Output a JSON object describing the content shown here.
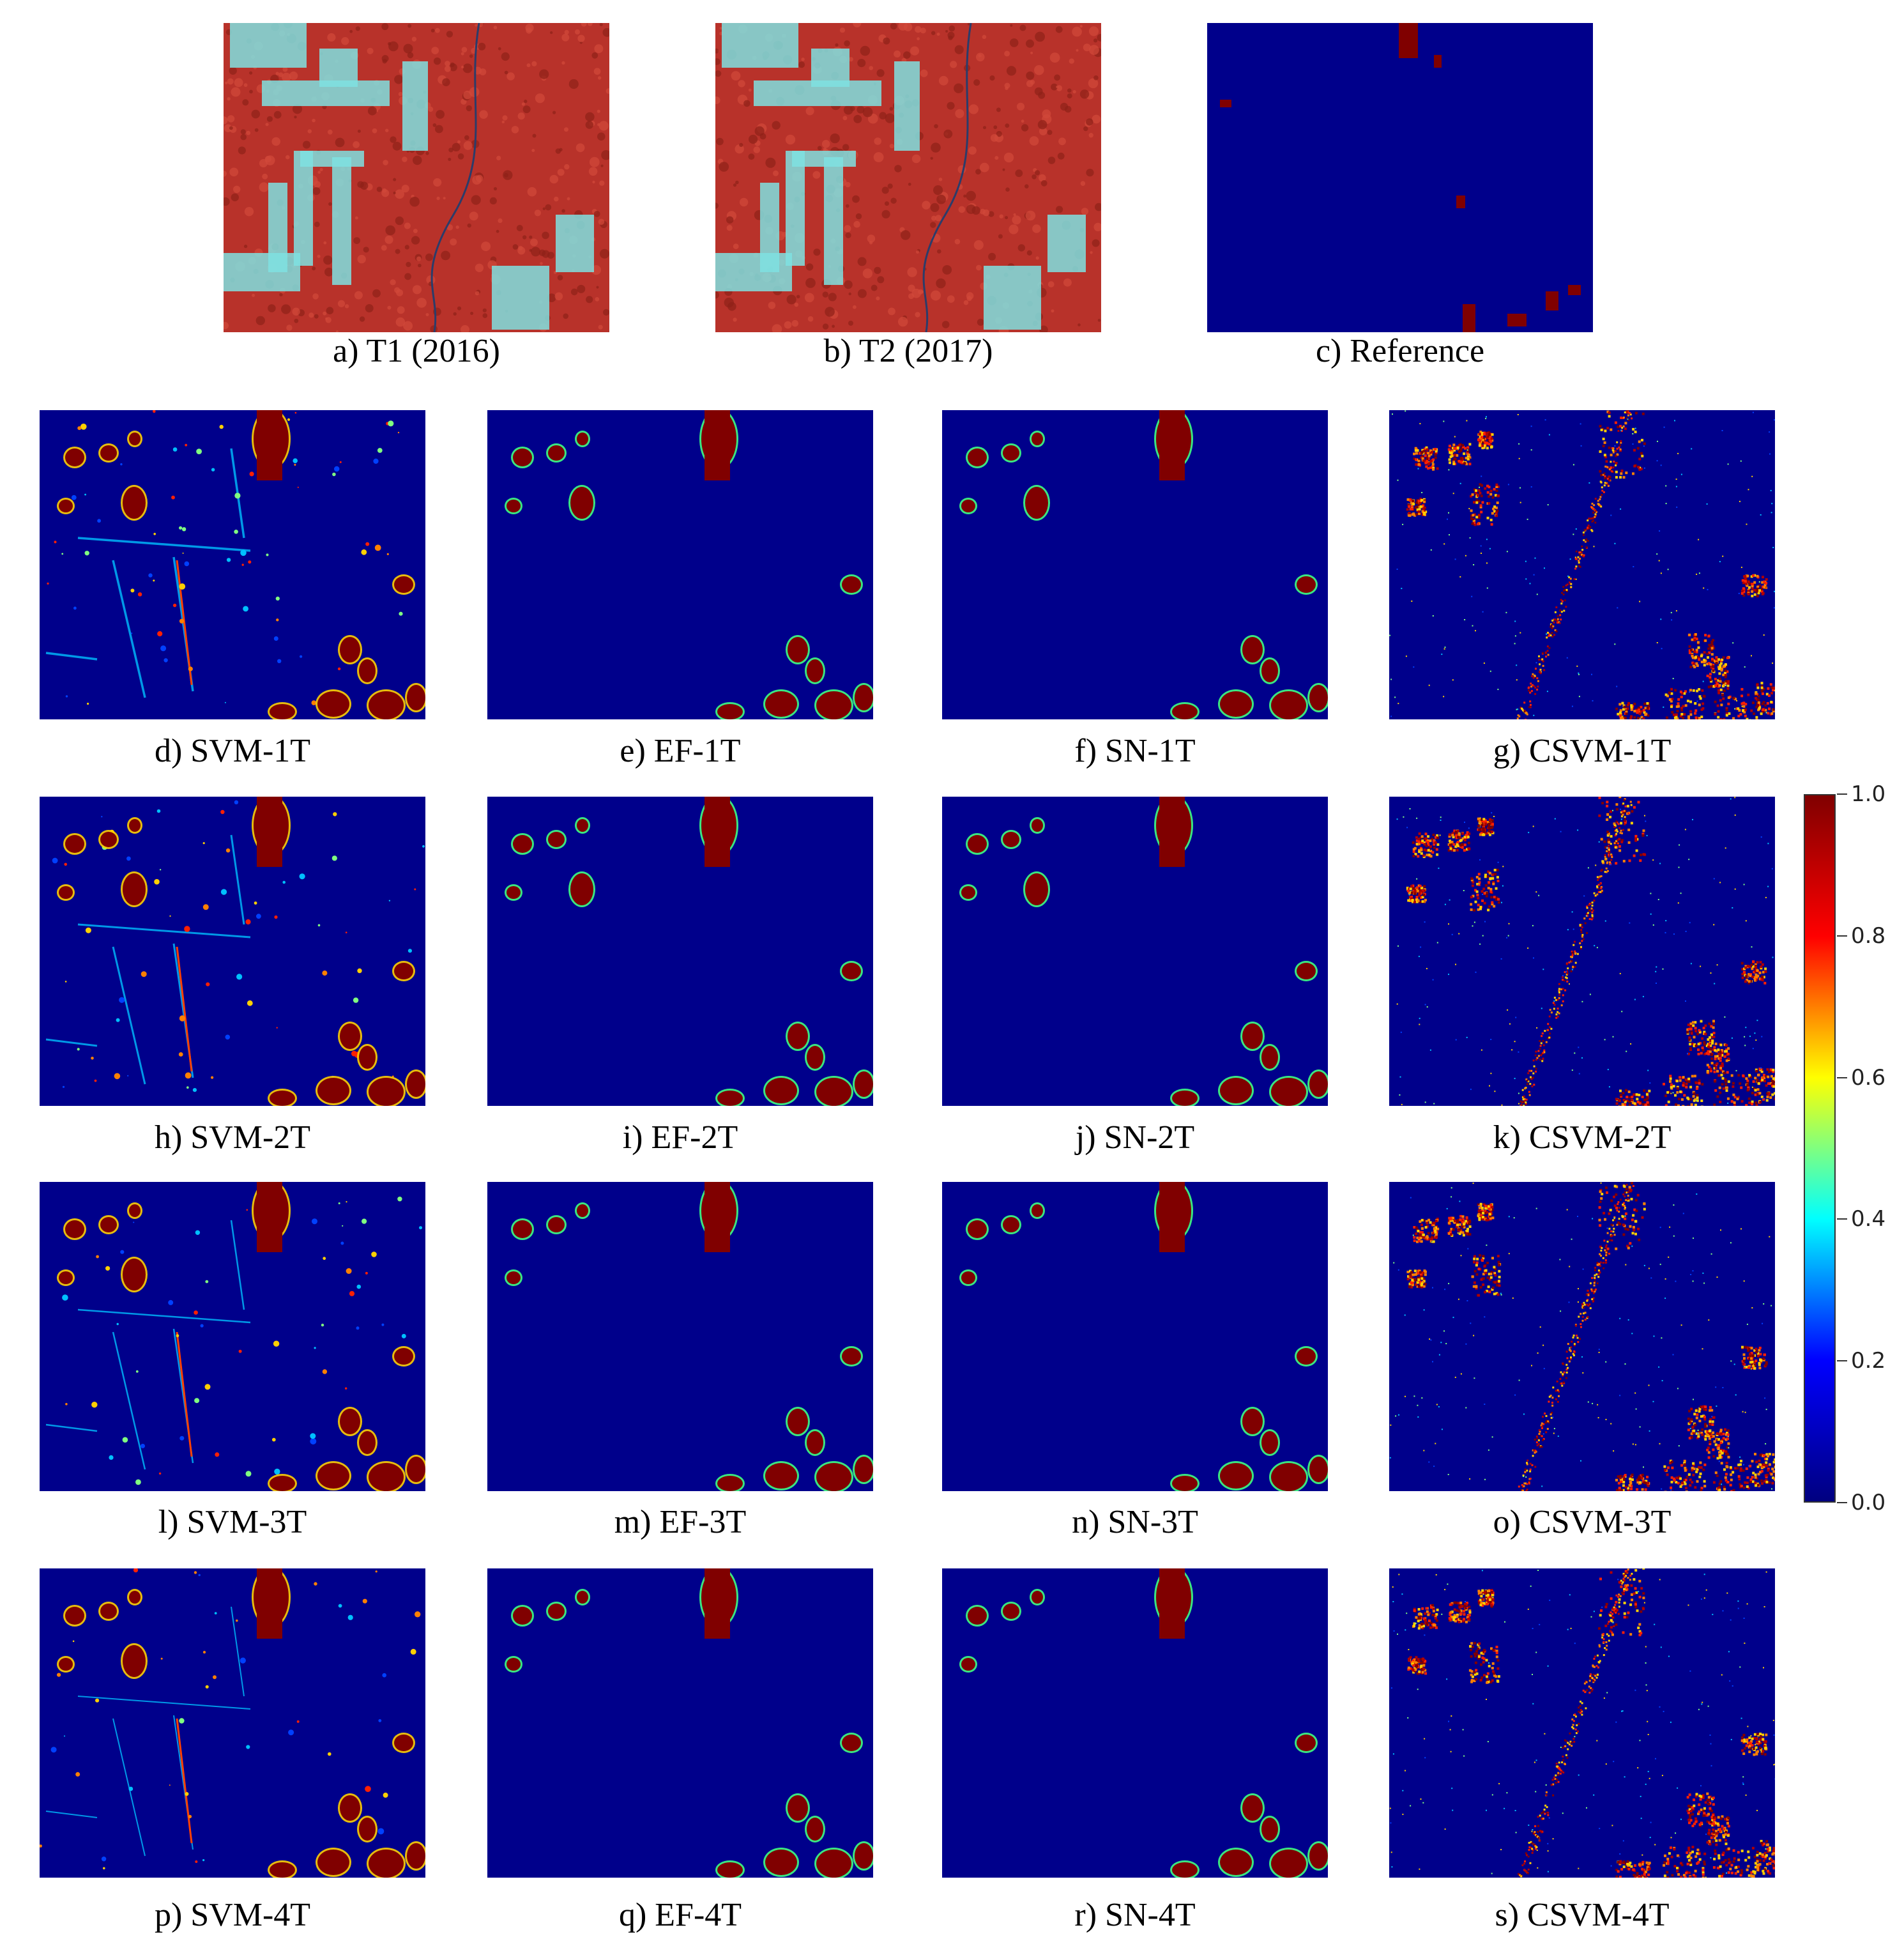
{
  "figure": {
    "panels": [
      {
        "id": "a",
        "caption": "a) T1 (2016)",
        "kind": "rgb",
        "time": "T1"
      },
      {
        "id": "b",
        "caption": "b) T2 (2017)",
        "kind": "rgb",
        "time": "T2"
      },
      {
        "id": "c",
        "caption": "c) Reference",
        "kind": "reference"
      },
      {
        "id": "d",
        "caption": "d) SVM-1T",
        "kind": "svm",
        "level": 1
      },
      {
        "id": "e",
        "caption": "e) EF-1T",
        "kind": "ef",
        "level": 1
      },
      {
        "id": "f",
        "caption": "f) SN-1T",
        "kind": "sn",
        "level": 1
      },
      {
        "id": "g",
        "caption": "g) CSVM-1T",
        "kind": "csvm",
        "level": 1
      },
      {
        "id": "h",
        "caption": "h) SVM-2T",
        "kind": "svm",
        "level": 2
      },
      {
        "id": "i",
        "caption": "i) EF-2T",
        "kind": "ef",
        "level": 2
      },
      {
        "id": "j",
        "caption": "j) SN-2T",
        "kind": "sn",
        "level": 2
      },
      {
        "id": "k",
        "caption": "k) CSVM-2T",
        "kind": "csvm",
        "level": 2
      },
      {
        "id": "l",
        "caption": "l) SVM-3T",
        "kind": "svm",
        "level": 3
      },
      {
        "id": "m",
        "caption": "m) EF-3T",
        "kind": "ef",
        "level": 3
      },
      {
        "id": "n",
        "caption": "n) SN-3T",
        "kind": "sn",
        "level": 3
      },
      {
        "id": "o",
        "caption": "o) CSVM-3T",
        "kind": "csvm",
        "level": 3
      },
      {
        "id": "p",
        "caption": "p) SVM-4T",
        "kind": "svm",
        "level": 4
      },
      {
        "id": "q",
        "caption": "q) EF-4T",
        "kind": "ef",
        "level": 4
      },
      {
        "id": "r",
        "caption": "r) SN-4T",
        "kind": "sn",
        "level": 4
      },
      {
        "id": "s",
        "caption": "s) CSVM-4T",
        "kind": "csvm",
        "level": 4
      }
    ],
    "colorbar": {
      "min": 0.0,
      "max": 1.0,
      "tick_labels": [
        "1.0",
        "0.8",
        "0.6",
        "0.4",
        "0.2",
        "0.0"
      ],
      "colormap": "jet",
      "colors": [
        "#800000",
        "#ff0000",
        "#ffff00",
        "#00ffff",
        "#0000ff",
        "#000080"
      ]
    },
    "colors": {
      "background_blue": "#00008b",
      "change_red": "#800000",
      "vegetation_red": "#b8322a",
      "cleared_cyan": "#7fe0e0"
    }
  }
}
